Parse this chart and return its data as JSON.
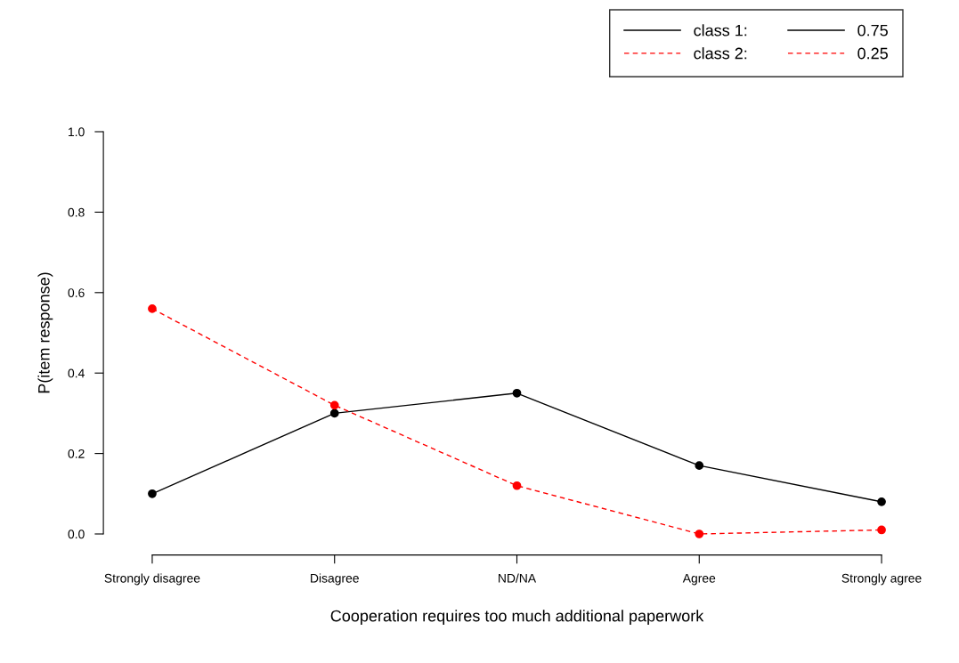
{
  "chart_data": {
    "type": "line",
    "xlabel": "Cooperation requires too much additional paperwork",
    "ylabel": "P(item response)",
    "categories": [
      "Strongly disagree",
      "Disagree",
      "ND/NA",
      "Agree",
      "Strongly agree"
    ],
    "series": [
      {
        "name": "class 1:",
        "color": "#000000",
        "line_style": "solid",
        "values": [
          0.1,
          0.3,
          0.35,
          0.17,
          0.08
        ]
      },
      {
        "name": "class 2:",
        "color": "#ff0000",
        "line_style": "dashed",
        "values": [
          0.56,
          0.32,
          0.12,
          0.0,
          0.01
        ]
      }
    ],
    "annotations": [
      "0.75",
      "0.25"
    ],
    "marker": "circle",
    "ylim": [
      0,
      1
    ],
    "yticks": [
      {
        "value": 0,
        "label": "0.0"
      },
      {
        "value": 0.2,
        "label": "0.2"
      },
      {
        "value": 0.4,
        "label": "0.4"
      },
      {
        "value": 0.6,
        "label": "0.6"
      },
      {
        "value": 0.8,
        "label": "0.8"
      },
      {
        "value": 1,
        "label": "1.0"
      }
    ],
    "grid": false,
    "legend": "top right"
  }
}
